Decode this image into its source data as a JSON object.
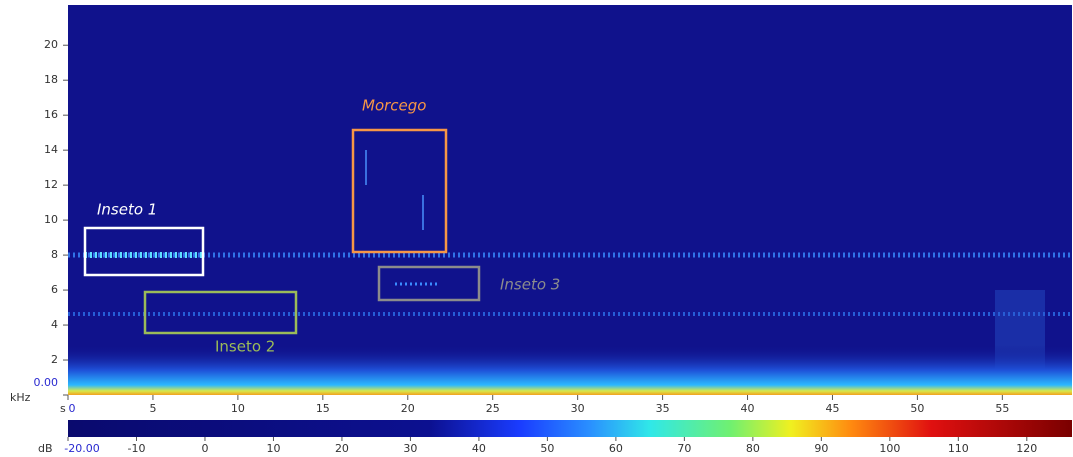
{
  "chart_data": {
    "type": "spectrogram",
    "x_label": "s",
    "y_label": "kHz",
    "xlim": [
      0,
      59.1
    ],
    "xticks": [
      0,
      5,
      10,
      15,
      20,
      25,
      30,
      35,
      40,
      45,
      50,
      55
    ],
    "ylim": [
      0,
      22.3
    ],
    "yticks": [
      {
        "value": 0,
        "label": "0.00"
      },
      2,
      4,
      6,
      8,
      10,
      12,
      14,
      16,
      18,
      20
    ],
    "colorbar": {
      "label": "dB",
      "lim": [
        -20,
        126.6
      ],
      "ticks": [
        {
          "value": -20,
          "label": "-20.00"
        },
        -10,
        0,
        10,
        20,
        30,
        40,
        50,
        60,
        70,
        80,
        90,
        100,
        110,
        120
      ]
    },
    "annotations": [
      "Inseto 1",
      "Inseto 2",
      "Morcego",
      "Inseto 3"
    ]
  }
}
